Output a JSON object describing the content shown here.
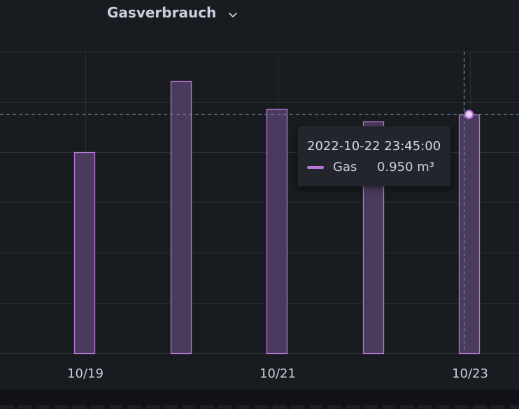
{
  "panel": {
    "title": "Gasverbrauch"
  },
  "tooltip": {
    "time": "2022-10-22 23:45:00",
    "series": "Gas",
    "value": "0.950 m³"
  },
  "colors": {
    "background": "#181b1f",
    "series": "#b877d9",
    "bar_fill": "#4a3a5e",
    "grid": "#2c2f36",
    "crosshair": "#6e8a93"
  },
  "chart_data": {
    "type": "bar",
    "title": "Gasverbrauch",
    "xlabel": "",
    "ylabel": "",
    "x_tick_labels": [
      "10/19",
      "10/21",
      "10/23"
    ],
    "series": [
      {
        "name": "Gas",
        "x": [
          "2022-10-18 23:45:00",
          "2022-10-19 23:45:00",
          "2022-10-20 23:45:00",
          "2022-10-21 23:45:00",
          "2022-10-22 23:45:00"
        ],
        "values": [
          0.799,
          1.083,
          0.972,
          0.922,
          0.95
        ]
      }
    ],
    "ylim": [
      0,
      1.2
    ],
    "grid": true,
    "legend": "none",
    "crosshair": {
      "x": "2022-10-22 23:45:00",
      "y": 0.95
    }
  }
}
